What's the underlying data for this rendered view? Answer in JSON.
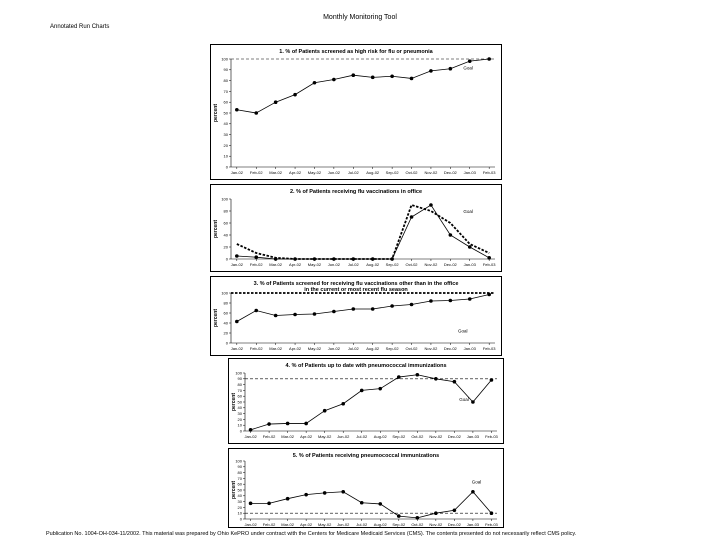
{
  "header": {
    "title": "Monthly Monitoring Tool",
    "subtitle": "Annotated Run Charts"
  },
  "footer": {
    "text": "Publication No. 1004-OH-034-11/2002. This material was prepared by Ohio KePRO under contract with the Centers for Medicare Medicaid Services (CMS). The contents presented do not necessarily reflect CMS policy."
  },
  "chart_data": [
    {
      "type": "line",
      "title": "1. % of Patients screened as high risk for flu or pneumonia",
      "ylabel": "percent",
      "xlabel": "",
      "ylim": [
        0,
        100
      ],
      "yticks": [
        "0",
        "10",
        "20",
        "30",
        "40",
        "50",
        "60",
        "70",
        "80",
        "90",
        "100"
      ],
      "categories": [
        "Jan-02",
        "Feb-02",
        "Mar-02",
        "Apr-02",
        "May-02",
        "Jun-02",
        "Jul-02",
        "Aug-02",
        "Sep-02",
        "Oct-02",
        "Nov-02",
        "Dec-02",
        "Jan-03",
        "Feb-03"
      ],
      "series": [
        {
          "values": [
            53,
            50,
            60,
            67,
            78,
            81,
            85,
            83,
            84,
            82,
            89,
            91,
            98,
            100
          ]
        }
      ],
      "goal": {
        "label": "Goal",
        "value": 100,
        "style": "dashed"
      }
    },
    {
      "type": "line",
      "title": "2. % of Patients receiving flu vaccinations in office",
      "ylabel": "percent",
      "xlabel": "",
      "ylim": [
        0,
        100
      ],
      "yticks": [
        "0",
        "20",
        "40",
        "60",
        "80",
        "100"
      ],
      "categories": [
        "Jan-02",
        "Feb-02",
        "Mar-02",
        "Apr-02",
        "May-02",
        "Jun-02",
        "Jul-02",
        "Aug-02",
        "Sep-02",
        "Oct-02",
        "Nov-02",
        "Dec-02",
        "Jan-03",
        "Feb-03"
      ],
      "series": [
        {
          "values": [
            5,
            3,
            0,
            0,
            0,
            0,
            0,
            0,
            0,
            70,
            90,
            40,
            20,
            2
          ]
        }
      ],
      "goal": {
        "label": "Goal",
        "values": [
          25,
          10,
          2,
          0,
          0,
          0,
          0,
          0,
          0,
          90,
          80,
          60,
          25,
          10
        ],
        "style": "dotted"
      }
    },
    {
      "type": "line",
      "title": "3. % of Patients screened for receiving flu vaccinations other than in the office in the current or most recent flu season",
      "ylabel": "percent",
      "xlabel": "",
      "ylim": [
        0,
        100
      ],
      "yticks": [
        "0",
        "20",
        "40",
        "60",
        "80",
        "100"
      ],
      "categories": [
        "Jan-02",
        "Feb-02",
        "Mar-02",
        "Apr-02",
        "May-02",
        "Jun-02",
        "Jul-02",
        "Aug-02",
        "Sep-02",
        "Oct-02",
        "Nov-02",
        "Dec-02",
        "Jan-03",
        "Feb-03"
      ],
      "series": [
        {
          "values": [
            43,
            65,
            55,
            57,
            58,
            63,
            68,
            68,
            74,
            77,
            84,
            85,
            88,
            97
          ]
        }
      ],
      "goal": {
        "label": "Goal",
        "value": 100,
        "style": "dotted"
      }
    },
    {
      "type": "line",
      "title": "4. % of Patients up to date with pneumococcal immunizations",
      "ylabel": "percent",
      "xlabel": "",
      "ylim": [
        0,
        100
      ],
      "yticks": [
        "0",
        "10",
        "20",
        "30",
        "40",
        "50",
        "60",
        "70",
        "80",
        "90",
        "100"
      ],
      "categories": [
        "Jan-02",
        "Feb-02",
        "Mar-02",
        "Apr-02",
        "May-02",
        "Jun-02",
        "Jul-02",
        "Aug-02",
        "Sep-02",
        "Oct-02",
        "Nov-02",
        "Dec-02",
        "Jan-03",
        "Feb-03"
      ],
      "series": [
        {
          "values": [
            2,
            12,
            13,
            13,
            35,
            47,
            70,
            73,
            93,
            97,
            90,
            85,
            50,
            88
          ]
        }
      ],
      "goal": {
        "label": "Goal",
        "value": 90,
        "style": "dashed"
      }
    },
    {
      "type": "line",
      "title": "5. % of Patients receiving pneumococcal immunizations",
      "ylabel": "percent",
      "xlabel": "",
      "ylim": [
        0,
        100
      ],
      "yticks": [
        "0",
        "10",
        "20",
        "30",
        "40",
        "50",
        "60",
        "70",
        "80",
        "90",
        "100"
      ],
      "categories": [
        "Jan-02",
        "Feb-02",
        "Mar-02",
        "Apr-02",
        "May-02",
        "Jun-02",
        "Jul-02",
        "Aug-02",
        "Sep-02",
        "Oct-02",
        "Nov-02",
        "Dec-02",
        "Jan-03",
        "Feb-03"
      ],
      "series": [
        {
          "values": [
            27,
            27,
            35,
            42,
            45,
            47,
            28,
            26,
            5,
            2,
            10,
            15,
            47,
            10
          ]
        }
      ],
      "goal": {
        "label": "Goal",
        "value": 10,
        "style": "dashed"
      }
    }
  ]
}
